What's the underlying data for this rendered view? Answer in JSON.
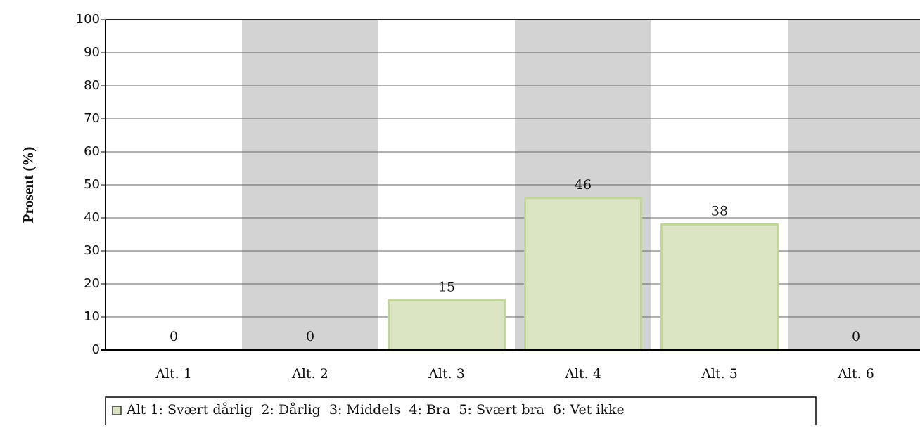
{
  "chart_data": {
    "type": "bar",
    "y_label": "Prosent (%)",
    "categories": [
      "Alt. 1",
      "Alt. 2",
      "Alt. 3",
      "Alt. 4",
      "Alt. 5",
      "Alt. 6"
    ],
    "series": [
      {
        "name": "Alt 1: Svært dårlig  2: Dårlig  3: Middels  4: Bra  5: Svært bra  6: Vet ikke",
        "color": "#dbe5c3",
        "edge_color": "#c2d69a",
        "values": [
          0,
          0,
          15,
          46,
          38,
          0
        ]
      }
    ],
    "ylim": [
      0,
      100
    ],
    "yticks": [
      0,
      10,
      20,
      30,
      40,
      50,
      60,
      70,
      80,
      90,
      100
    ],
    "grid": true,
    "band_colors": [
      "#ffffff",
      "#d3d3d3"
    ],
    "legend": "bottom"
  }
}
